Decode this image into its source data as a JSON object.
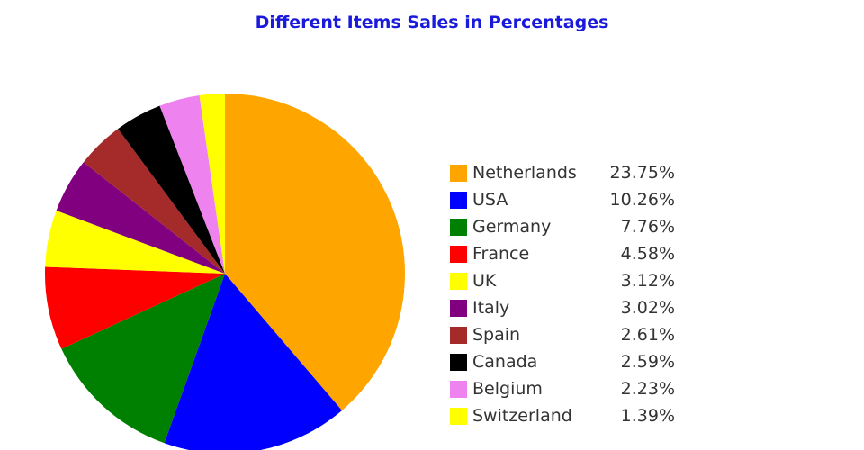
{
  "chart_data": {
    "type": "pie",
    "title": "Different Items Sales in Percentages",
    "categories": [
      "Netherlands",
      "USA",
      "Germany",
      "France",
      "UK",
      "Italy",
      "Spain",
      "Canada",
      "Belgium",
      "Switzerland"
    ],
    "values": [
      23.75,
      10.26,
      7.76,
      4.58,
      3.12,
      3.02,
      2.61,
      2.59,
      2.23,
      1.39
    ],
    "value_labels": [
      "23.75%",
      "10.26%",
      "7.76%",
      "4.58%",
      "3.12%",
      "3.02%",
      "2.61%",
      "2.59%",
      "2.23%",
      "1.39%"
    ],
    "colors": [
      "#ffa500",
      "#0000ff",
      "#008000",
      "#ff0000",
      "#ffff00",
      "#800080",
      "#a52a2a",
      "#000000",
      "#ee82ee",
      "#ffff00"
    ],
    "start_angle": "12 o'clock",
    "direction": "clockwise",
    "legend_placement": "right"
  }
}
